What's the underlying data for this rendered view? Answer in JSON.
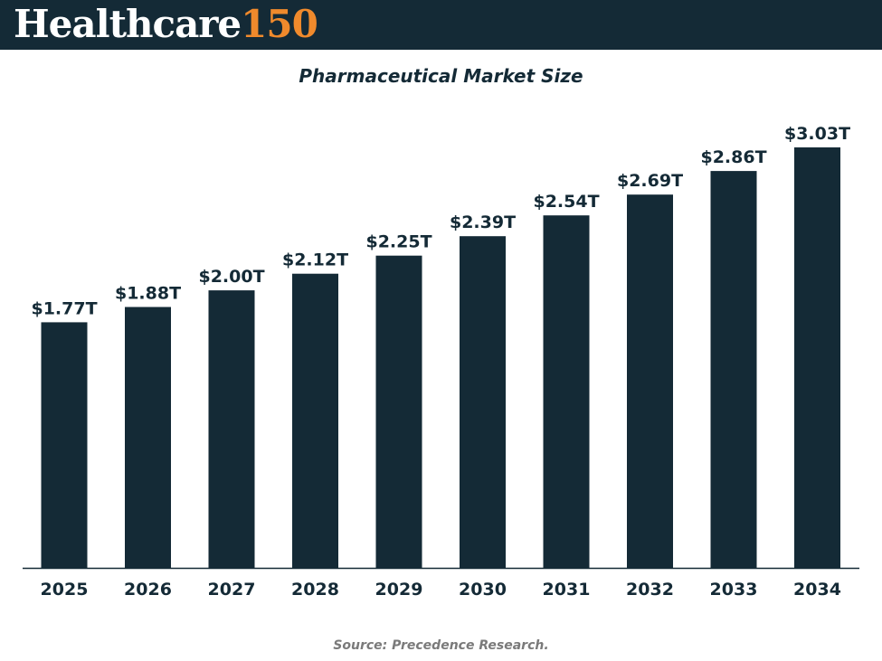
{
  "brand": {
    "name": "Healthcare",
    "number": "150",
    "name_color": "#ffffff",
    "number_color": "#f08a2c",
    "bar_color": "#142a36"
  },
  "footer": {
    "source": "Source: Precedence Research."
  },
  "chart_data": {
    "type": "bar",
    "title": "Pharmaceutical Market Size",
    "xlabel": "",
    "ylabel": "",
    "categories": [
      "2025",
      "2026",
      "2027",
      "2028",
      "2029",
      "2030",
      "2031",
      "2032",
      "2033",
      "2034"
    ],
    "values": [
      1.77,
      1.88,
      2.0,
      2.12,
      2.25,
      2.39,
      2.54,
      2.69,
      2.86,
      3.03
    ],
    "data_labels": [
      "$1.77T",
      "$1.88T",
      "$2.00T",
      "$2.12T",
      "$2.25T",
      "$2.39T",
      "$2.54T",
      "$2.69T",
      "$2.86T",
      "$3.03T"
    ],
    "unit": "$ trillion",
    "ylim": [
      0,
      3.03
    ],
    "grid": false,
    "legend": "none",
    "bar_color": "#142a36"
  }
}
